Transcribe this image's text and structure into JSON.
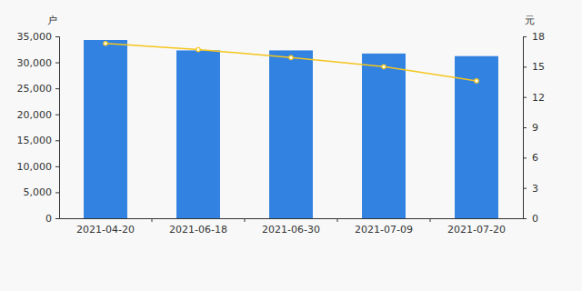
{
  "chart_data": {
    "type": "bar",
    "y_label": "户",
    "y2_label": "元",
    "categories": [
      "2021-04-20",
      "2021-06-18",
      "2021-06-30",
      "2021-07-09",
      "2021-07-20"
    ],
    "series": [
      {
        "type": "bar",
        "color": "#3282e2",
        "values": [
          34300,
          32300,
          32300,
          31700,
          31200
        ]
      },
      {
        "type": "line",
        "axis": "y2",
        "color": "#f5c51c",
        "marker": "circle",
        "values": [
          17.3,
          16.7,
          15.9,
          15.0,
          13.6
        ]
      }
    ],
    "ylim": [
      0,
      35000
    ],
    "yticks": [
      0,
      {
        "value": 5000,
        "label": "5,000"
      },
      {
        "value": 10000,
        "label": "10,000"
      },
      {
        "value": 15000,
        "label": "15,000"
      },
      {
        "value": 20000,
        "label": "20,000"
      },
      {
        "value": 25000,
        "label": "25,000"
      },
      {
        "value": 30000,
        "label": "30,000"
      },
      {
        "value": 35000,
        "label": "35,000"
      }
    ],
    "y2lim": [
      0,
      18
    ],
    "y2ticks": [
      0,
      3,
      6,
      9,
      12,
      15,
      18
    ],
    "grid": false
  }
}
